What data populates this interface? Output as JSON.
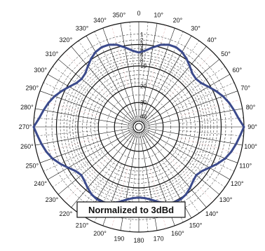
{
  "chart_data": {
    "type": "polar",
    "title": "",
    "annotation": "Normalized to 3dBd",
    "angle_unit": "degrees",
    "direction": "clockwise",
    "zero_location": "top",
    "angle_ticks": [
      {
        "deg": 0,
        "label": "0"
      },
      {
        "deg": 10,
        "label": "10°"
      },
      {
        "deg": 20,
        "label": "20°"
      },
      {
        "deg": 30,
        "label": "30°"
      },
      {
        "deg": 40,
        "label": "40°"
      },
      {
        "deg": 50,
        "label": "50°"
      },
      {
        "deg": 60,
        "label": "60°"
      },
      {
        "deg": 70,
        "label": "70°"
      },
      {
        "deg": 80,
        "label": "80°"
      },
      {
        "deg": 90,
        "label": "90°"
      },
      {
        "deg": 100,
        "label": "100°"
      },
      {
        "deg": 110,
        "label": "110°"
      },
      {
        "deg": 120,
        "label": "120°"
      },
      {
        "deg": 130,
        "label": "130°"
      },
      {
        "deg": 140,
        "label": "140°"
      },
      {
        "deg": 150,
        "label": "150°"
      },
      {
        "deg": 160,
        "label": "160°"
      },
      {
        "deg": 170,
        "label": "170"
      },
      {
        "deg": 180,
        "label": "180"
      },
      {
        "deg": 190,
        "label": "190"
      },
      {
        "deg": 200,
        "label": "200°"
      },
      {
        "deg": 210,
        "label": "210°"
      },
      {
        "deg": 220,
        "label": "220°"
      },
      {
        "deg": 230,
        "label": "230°"
      },
      {
        "deg": 240,
        "label": "240°"
      },
      {
        "deg": 250,
        "label": "250°"
      },
      {
        "deg": 260,
        "label": "260°"
      },
      {
        "deg": 270,
        "label": "270°"
      },
      {
        "deg": 280,
        "label": "280°"
      },
      {
        "deg": 290,
        "label": "290°"
      },
      {
        "deg": 300,
        "label": "300°"
      },
      {
        "deg": 310,
        "label": "310°"
      },
      {
        "deg": 320,
        "label": "320°"
      },
      {
        "deg": 330,
        "label": "330°"
      },
      {
        "deg": 340,
        "label": "340°"
      },
      {
        "deg": 350,
        "label": "350°"
      }
    ],
    "radial_unit": "dB below peak",
    "radial_range": [
      0,
      40
    ],
    "radial_labels": [
      {
        "db": 1,
        "label": "1"
      },
      {
        "db": 2,
        "label": "2"
      },
      {
        "db": 3,
        "label": "3"
      },
      {
        "db": 4,
        "label": "4"
      },
      {
        "db": 5,
        "label": "5"
      },
      {
        "db": 6,
        "label": "6"
      },
      {
        "db": 8,
        "label": "8"
      },
      {
        "db": 10,
        "label": "10"
      },
      {
        "db": 20,
        "label": "20"
      },
      {
        "db": 30,
        "label": "30"
      },
      {
        "db": 40,
        "label": "40"
      }
    ],
    "series": [
      {
        "name": "",
        "color": "#3b4a8c",
        "points_deg_db": [
          [
            0,
            5.2
          ],
          [
            5,
            4.5
          ],
          [
            10,
            3.4
          ],
          [
            15,
            2.4
          ],
          [
            20,
            1.9
          ],
          [
            25,
            1.8
          ],
          [
            30,
            2.1
          ],
          [
            35,
            2.8
          ],
          [
            40,
            3.8
          ],
          [
            45,
            4.8
          ],
          [
            50,
            5.1
          ],
          [
            55,
            4.6
          ],
          [
            60,
            3.5
          ],
          [
            65,
            2.4
          ],
          [
            70,
            1.5
          ],
          [
            75,
            0.9
          ],
          [
            80,
            0.5
          ],
          [
            85,
            0.2
          ],
          [
            90,
            0.0
          ],
          [
            95,
            0.1
          ],
          [
            100,
            0.3
          ],
          [
            105,
            0.6
          ],
          [
            110,
            1.1
          ],
          [
            115,
            2.0
          ],
          [
            120,
            3.2
          ],
          [
            125,
            4.4
          ],
          [
            130,
            5.0
          ],
          [
            135,
            4.5
          ],
          [
            140,
            3.7
          ],
          [
            145,
            3.0
          ],
          [
            150,
            2.7
          ],
          [
            155,
            2.8
          ],
          [
            160,
            3.3
          ],
          [
            165,
            4.2
          ],
          [
            170,
            5.3
          ],
          [
            175,
            6.1
          ],
          [
            180,
            6.4
          ],
          [
            185,
            6.1
          ],
          [
            190,
            5.3
          ],
          [
            195,
            4.2
          ],
          [
            200,
            3.3
          ],
          [
            205,
            2.8
          ],
          [
            210,
            2.7
          ],
          [
            215,
            3.0
          ],
          [
            220,
            3.7
          ],
          [
            225,
            4.5
          ],
          [
            230,
            5.0
          ],
          [
            235,
            4.4
          ],
          [
            240,
            3.2
          ],
          [
            245,
            2.0
          ],
          [
            250,
            1.1
          ],
          [
            255,
            0.6
          ],
          [
            260,
            0.3
          ],
          [
            265,
            0.1
          ],
          [
            270,
            0.0
          ],
          [
            275,
            0.2
          ],
          [
            280,
            0.5
          ],
          [
            285,
            0.9
          ],
          [
            290,
            1.5
          ],
          [
            295,
            2.4
          ],
          [
            300,
            3.5
          ],
          [
            305,
            4.6
          ],
          [
            310,
            5.1
          ],
          [
            315,
            4.8
          ],
          [
            320,
            3.8
          ],
          [
            325,
            2.8
          ],
          [
            330,
            2.1
          ],
          [
            335,
            1.8
          ],
          [
            340,
            1.9
          ],
          [
            345,
            2.4
          ],
          [
            350,
            3.4
          ],
          [
            355,
            4.5
          ]
        ]
      }
    ],
    "grid": true,
    "accent_color": "#e0a0a0"
  }
}
